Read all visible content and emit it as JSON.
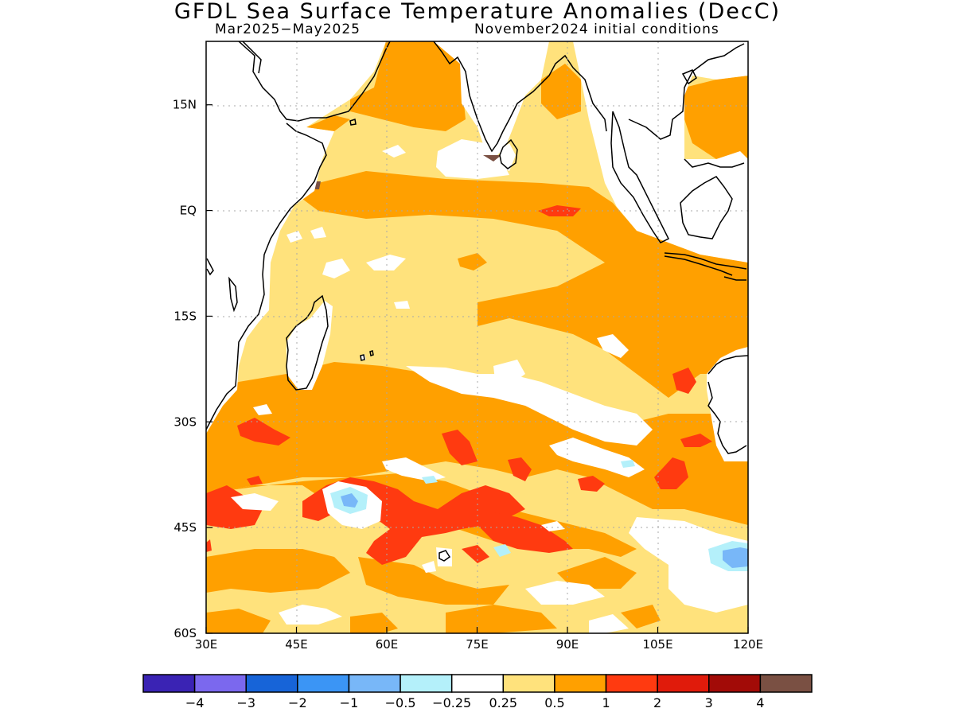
{
  "title": "GFDL Sea Surface Temperature Anomalies (DecC)",
  "subtitle_left": "Mar2025−May2025",
  "subtitle_right": "November2024 initial conditions",
  "map": {
    "lon_range": [
      30,
      120
    ],
    "lat_range": [
      -60,
      24
    ],
    "x_ticks": [
      {
        "lon": 30,
        "label": "30E"
      },
      {
        "lon": 45,
        "label": "45E"
      },
      {
        "lon": 60,
        "label": "60E"
      },
      {
        "lon": 75,
        "label": "75E"
      },
      {
        "lon": 90,
        "label": "90E"
      },
      {
        "lon": 105,
        "label": "105E"
      },
      {
        "lon": 120,
        "label": "120E"
      }
    ],
    "y_ticks": [
      {
        "lat": 15,
        "label": "15N"
      },
      {
        "lat": 0,
        "label": "EQ"
      },
      {
        "lat": -15,
        "label": "15S"
      },
      {
        "lat": -30,
        "label": "30S"
      },
      {
        "lat": -45,
        "label": "45S"
      },
      {
        "lat": -60,
        "label": "60S"
      }
    ],
    "grid": true
  },
  "colorbar": {
    "colors": [
      "#3a23b4",
      "#7b68ee",
      "#1764d8",
      "#3b95f5",
      "#78b7f8",
      "#b4f0fa",
      "#ffffff",
      "#ffe27c",
      "#ffa000",
      "#ff3a10",
      "#e01b0b",
      "#a20b07",
      "#7a5043"
    ],
    "labels": [
      "−4",
      "−3",
      "−2",
      "−1",
      "−0.5",
      "−0.25",
      "0.25",
      "0.5",
      "1",
      "2",
      "3",
      "4"
    ]
  }
}
